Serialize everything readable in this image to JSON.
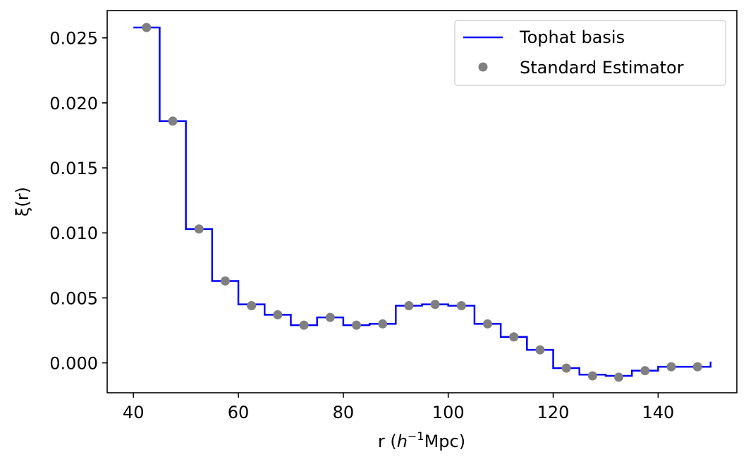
{
  "chart_data": {
    "type": "line",
    "xlabel_prefix": "r (",
    "xlabel_italic": "h",
    "xlabel_sup": "−1",
    "xlabel_suffix": "Mpc)",
    "ylabel": "ξ(r)",
    "xlim": [
      35,
      155
    ],
    "ylim": [
      -0.0023,
      0.0271
    ],
    "xticks": [
      40,
      60,
      80,
      100,
      120,
      140
    ],
    "xtick_labels": [
      "40",
      "60",
      "80",
      "100",
      "120",
      "140"
    ],
    "yticks": [
      0.0,
      0.005,
      0.01,
      0.015,
      0.02,
      0.025
    ],
    "ytick_labels": [
      "0.000",
      "0.005",
      "0.010",
      "0.015",
      "0.020",
      "0.025"
    ],
    "grid": false,
    "legend_position": "top-right",
    "series": [
      {
        "name": "Tophat basis",
        "kind": "step",
        "color": "#0000ff",
        "bin_edges": [
          40,
          45,
          50,
          55,
          60,
          65,
          70,
          75,
          80,
          85,
          90,
          95,
          100,
          105,
          110,
          115,
          120,
          125,
          130,
          135,
          140,
          145,
          150
        ],
        "values": [
          0.0258,
          0.0186,
          0.0103,
          0.0063,
          0.0045,
          0.0037,
          0.0029,
          0.0035,
          0.0029,
          0.003,
          0.0044,
          0.0045,
          0.0044,
          0.003,
          0.002,
          0.001,
          -0.0004,
          -0.0009,
          -0.001,
          -0.0006,
          -0.0003,
          -0.0003
        ],
        "end_value": 0.0001
      },
      {
        "name": "Standard Estimator",
        "kind": "markers",
        "color": "#808080",
        "x": [
          42.5,
          47.5,
          52.5,
          57.5,
          62.5,
          67.5,
          72.5,
          77.5,
          82.5,
          87.5,
          92.5,
          97.5,
          102.5,
          107.5,
          112.5,
          117.5,
          122.5,
          127.5,
          132.5,
          137.5,
          142.5,
          147.5
        ],
        "y": [
          0.0258,
          0.0186,
          0.0103,
          0.0063,
          0.0044,
          0.0037,
          0.0029,
          0.0035,
          0.0029,
          0.003,
          0.0044,
          0.0045,
          0.0044,
          0.003,
          0.002,
          0.001,
          -0.0004,
          -0.001,
          -0.0011,
          -0.0006,
          -0.0003,
          -0.0003
        ]
      }
    ]
  }
}
